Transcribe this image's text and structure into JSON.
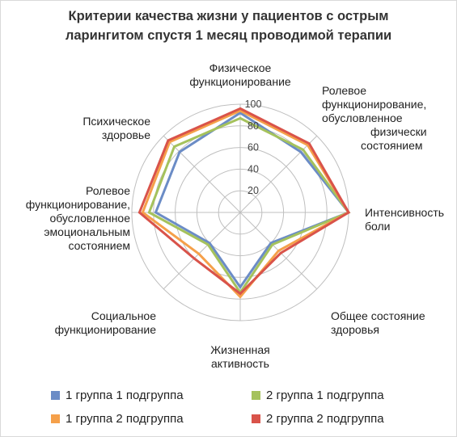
{
  "chart_data": {
    "type": "radar",
    "title_lines": [
      "Критерии качества жизни у пациентов с острым",
      "ларингитом спустя 1 месяц проводимой терапии"
    ],
    "axes": [
      {
        "name": "phys",
        "lines": [
          "Физическое",
          "функционирование"
        ]
      },
      {
        "name": "role-phys",
        "lines": [
          "Ролевое",
          "функционирование,",
          "обусловленное",
          "физически",
          "состоянием"
        ]
      },
      {
        "name": "pain",
        "lines": [
          "Интенсивность",
          "боли"
        ]
      },
      {
        "name": "general",
        "lines": [
          "Общее состояние",
          "здоровья"
        ]
      },
      {
        "name": "vitality",
        "lines": [
          "Жизненная",
          "активность"
        ]
      },
      {
        "name": "social",
        "lines": [
          "Социальное",
          "функционирование"
        ]
      },
      {
        "name": "role-emo",
        "lines": [
          "Ролевое",
          "функционирование,",
          "обусловленное",
          "эмоциональным",
          "состоянием"
        ]
      },
      {
        "name": "mental",
        "lines": [
          "Психическое",
          "здоровье"
        ]
      }
    ],
    "rmin": 0,
    "rmax": 100,
    "ticks": [
      0,
      20,
      40,
      60,
      80,
      100
    ],
    "tick_labels": [
      "",
      "20",
      "40",
      "60",
      "80",
      "100"
    ],
    "grid": true,
    "legend_position": "bottom",
    "series": [
      {
        "name": "1 группа 1 подгруппа",
        "color": "#6b8cc6",
        "values": [
          92,
          79,
          100,
          40,
          69,
          40,
          78,
          79
        ]
      },
      {
        "name": "2 группа 1 подгруппа",
        "color": "#a5c25c",
        "values": [
          87,
          82,
          100,
          42,
          74,
          42,
          84,
          86
        ]
      },
      {
        "name": "1 группа 2 подгруппа",
        "color": "#f5a04a",
        "values": [
          94,
          88,
          100,
          50,
          78,
          54,
          90,
          92
        ]
      },
      {
        "name": "2 группа 2 подгруппа",
        "color": "#d9534a",
        "values": [
          96,
          90,
          100,
          53,
          75,
          60,
          93,
          94
        ]
      }
    ]
  }
}
